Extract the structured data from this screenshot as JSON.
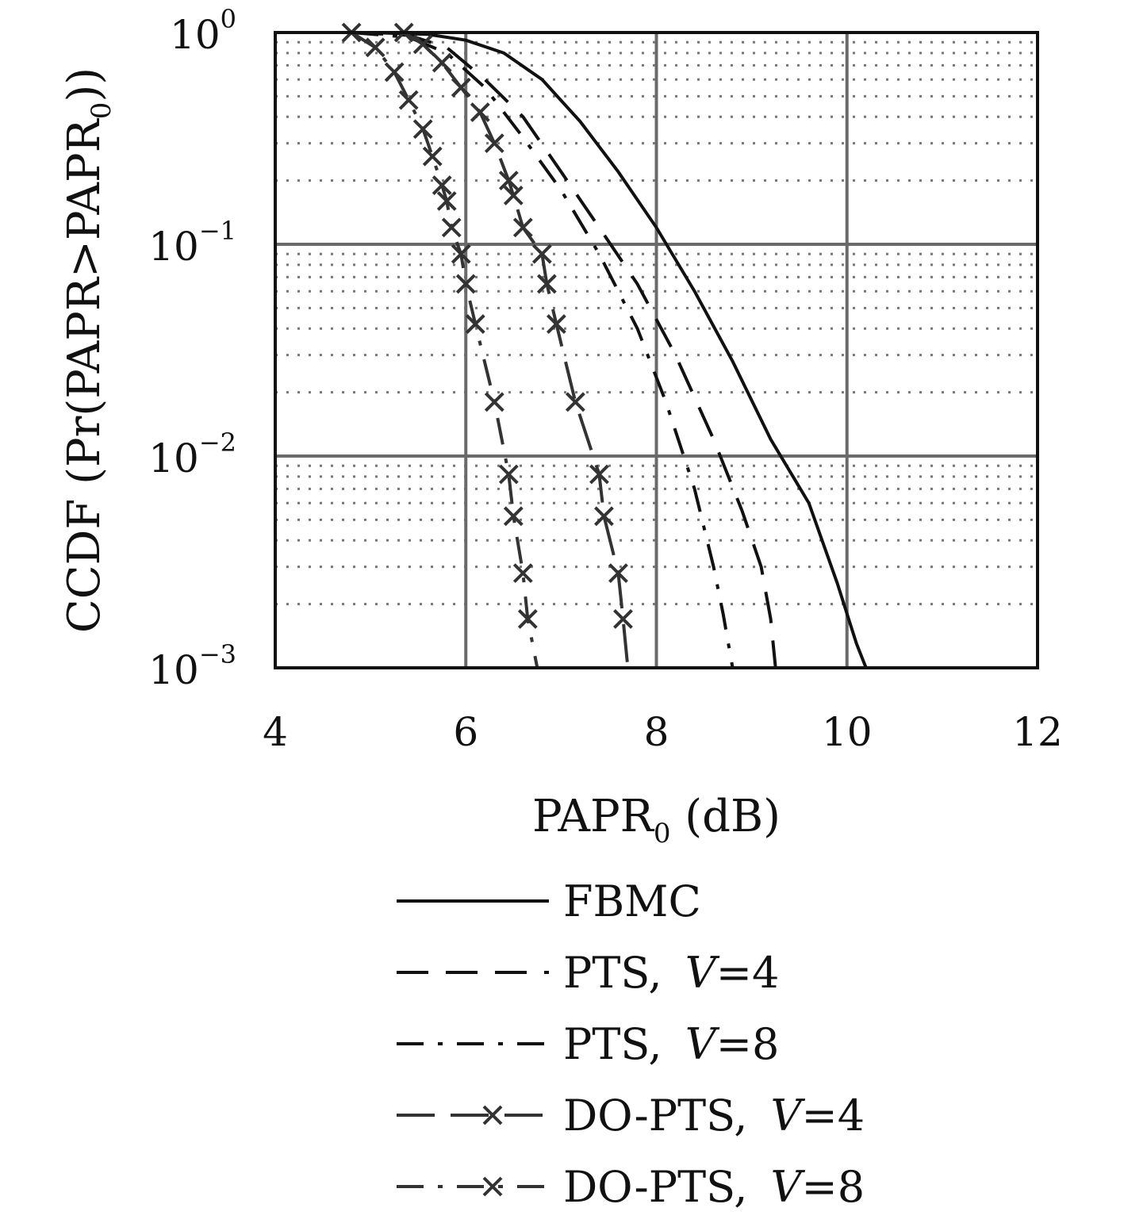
{
  "chart_data": {
    "type": "line",
    "title": "",
    "xlabel": "PAPR0 (dB)",
    "xlabel_parts": {
      "main": "PAPR",
      "sub": "0",
      "unit": " (dB)"
    },
    "ylabel": "CCDF (Pr(PAPR>PAPR0))",
    "ylabel_parts": {
      "main": "CCDF (Pr(PAPR>PAPR",
      "sub": "0",
      "end": "))"
    },
    "xlim": [
      4,
      12
    ],
    "ylim": [
      0.001,
      1
    ],
    "yscale": "log",
    "grid": true,
    "legend_position": "bottom",
    "x_ticks": [
      {
        "value": 4,
        "label": "4"
      },
      {
        "value": 6,
        "label": "6"
      },
      {
        "value": 8,
        "label": "8"
      },
      {
        "value": 10,
        "label": "10"
      },
      {
        "value": 12,
        "label": "12"
      }
    ],
    "y_ticks": [
      {
        "value": 1,
        "base": "10",
        "exp": "0"
      },
      {
        "value": 0.1,
        "base": "10",
        "exp": "−1"
      },
      {
        "value": 0.01,
        "base": "10",
        "exp": "−2"
      },
      {
        "value": 0.001,
        "base": "10",
        "exp": "−3"
      }
    ],
    "series": [
      {
        "name": "FBMC",
        "legend_text": "FBMC",
        "legend_var": "",
        "legend_val": "",
        "style": "solid",
        "markers": false,
        "color": "#111111",
        "x": [
          4.0,
          5.0,
          5.6,
          6.0,
          6.4,
          6.8,
          7.2,
          7.6,
          8.0,
          8.4,
          8.8,
          9.2,
          9.6,
          9.9,
          10.1,
          10.2
        ],
        "y": [
          1.0,
          1.0,
          0.98,
          0.92,
          0.8,
          0.6,
          0.38,
          0.22,
          0.12,
          0.06,
          0.028,
          0.012,
          0.006,
          0.0025,
          0.0013,
          0.001
        ]
      },
      {
        "name": "PTS, V=4",
        "legend_text": "PTS, ",
        "legend_var": "V",
        "legend_val": "=4",
        "style": "dashed",
        "markers": false,
        "color": "#111111",
        "x": [
          4.8,
          5.4,
          5.8,
          6.2,
          6.6,
          7.0,
          7.4,
          7.8,
          8.2,
          8.6,
          8.9,
          9.1,
          9.2,
          9.25
        ],
        "y": [
          1.0,
          0.97,
          0.85,
          0.6,
          0.4,
          0.22,
          0.12,
          0.065,
          0.03,
          0.012,
          0.0055,
          0.003,
          0.0017,
          0.001
        ]
      },
      {
        "name": "PTS, V=8",
        "legend_text": "PTS, ",
        "legend_var": "V",
        "legend_val": "=8",
        "style": "dashdot",
        "markers": false,
        "color": "#111111",
        "x": [
          4.8,
          5.4,
          5.8,
          6.2,
          6.6,
          7.0,
          7.4,
          7.8,
          8.1,
          8.4,
          8.6,
          8.7,
          8.8
        ],
        "y": [
          1.0,
          0.95,
          0.8,
          0.55,
          0.32,
          0.18,
          0.09,
          0.04,
          0.018,
          0.007,
          0.003,
          0.0018,
          0.001
        ]
      },
      {
        "name": "DO-PTS, V=4",
        "legend_text": "DO-PTS, ",
        "legend_var": "V",
        "legend_val": "=4",
        "style": "longdash",
        "markers": true,
        "color": "#333333",
        "x": [
          5.35,
          5.55,
          5.75,
          5.95,
          6.15,
          6.3,
          6.45,
          6.5,
          6.6,
          6.8,
          6.85,
          6.95,
          7.15,
          7.4,
          7.45,
          7.6,
          7.65,
          7.7
        ],
        "y": [
          1.0,
          0.88,
          0.72,
          0.55,
          0.42,
          0.3,
          0.2,
          0.17,
          0.12,
          0.09,
          0.065,
          0.042,
          0.018,
          0.0082,
          0.0052,
          0.0028,
          0.0017,
          0.001
        ]
      },
      {
        "name": "DO-PTS, V=8",
        "legend_text": "DO-PTS, ",
        "legend_var": "V",
        "legend_val": "=8",
        "style": "dashdot",
        "markers": true,
        "color": "#333333",
        "x": [
          4.8,
          5.05,
          5.25,
          5.4,
          5.55,
          5.65,
          5.75,
          5.8,
          5.85,
          5.95,
          6.0,
          6.1,
          6.3,
          6.45,
          6.5,
          6.6,
          6.65,
          6.75
        ],
        "y": [
          1.0,
          0.85,
          0.65,
          0.48,
          0.35,
          0.26,
          0.19,
          0.16,
          0.12,
          0.09,
          0.065,
          0.042,
          0.018,
          0.0082,
          0.0052,
          0.0028,
          0.0017,
          0.001
        ]
      }
    ]
  }
}
